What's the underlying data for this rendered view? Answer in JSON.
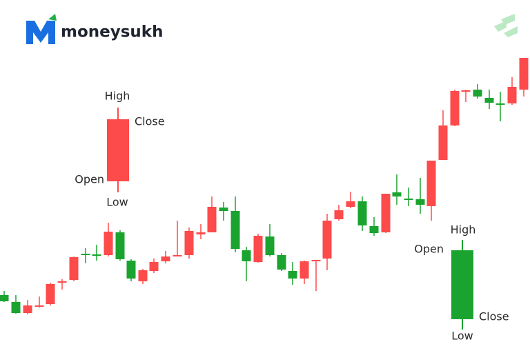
{
  "logo": {
    "text": "moneysukh"
  },
  "bearish_example": {
    "high": "High",
    "close": "Close",
    "open": "Open",
    "low": "Low"
  },
  "bullish_example": {
    "high": "High",
    "open": "Open",
    "close": "Close",
    "low": "Low"
  }
}
